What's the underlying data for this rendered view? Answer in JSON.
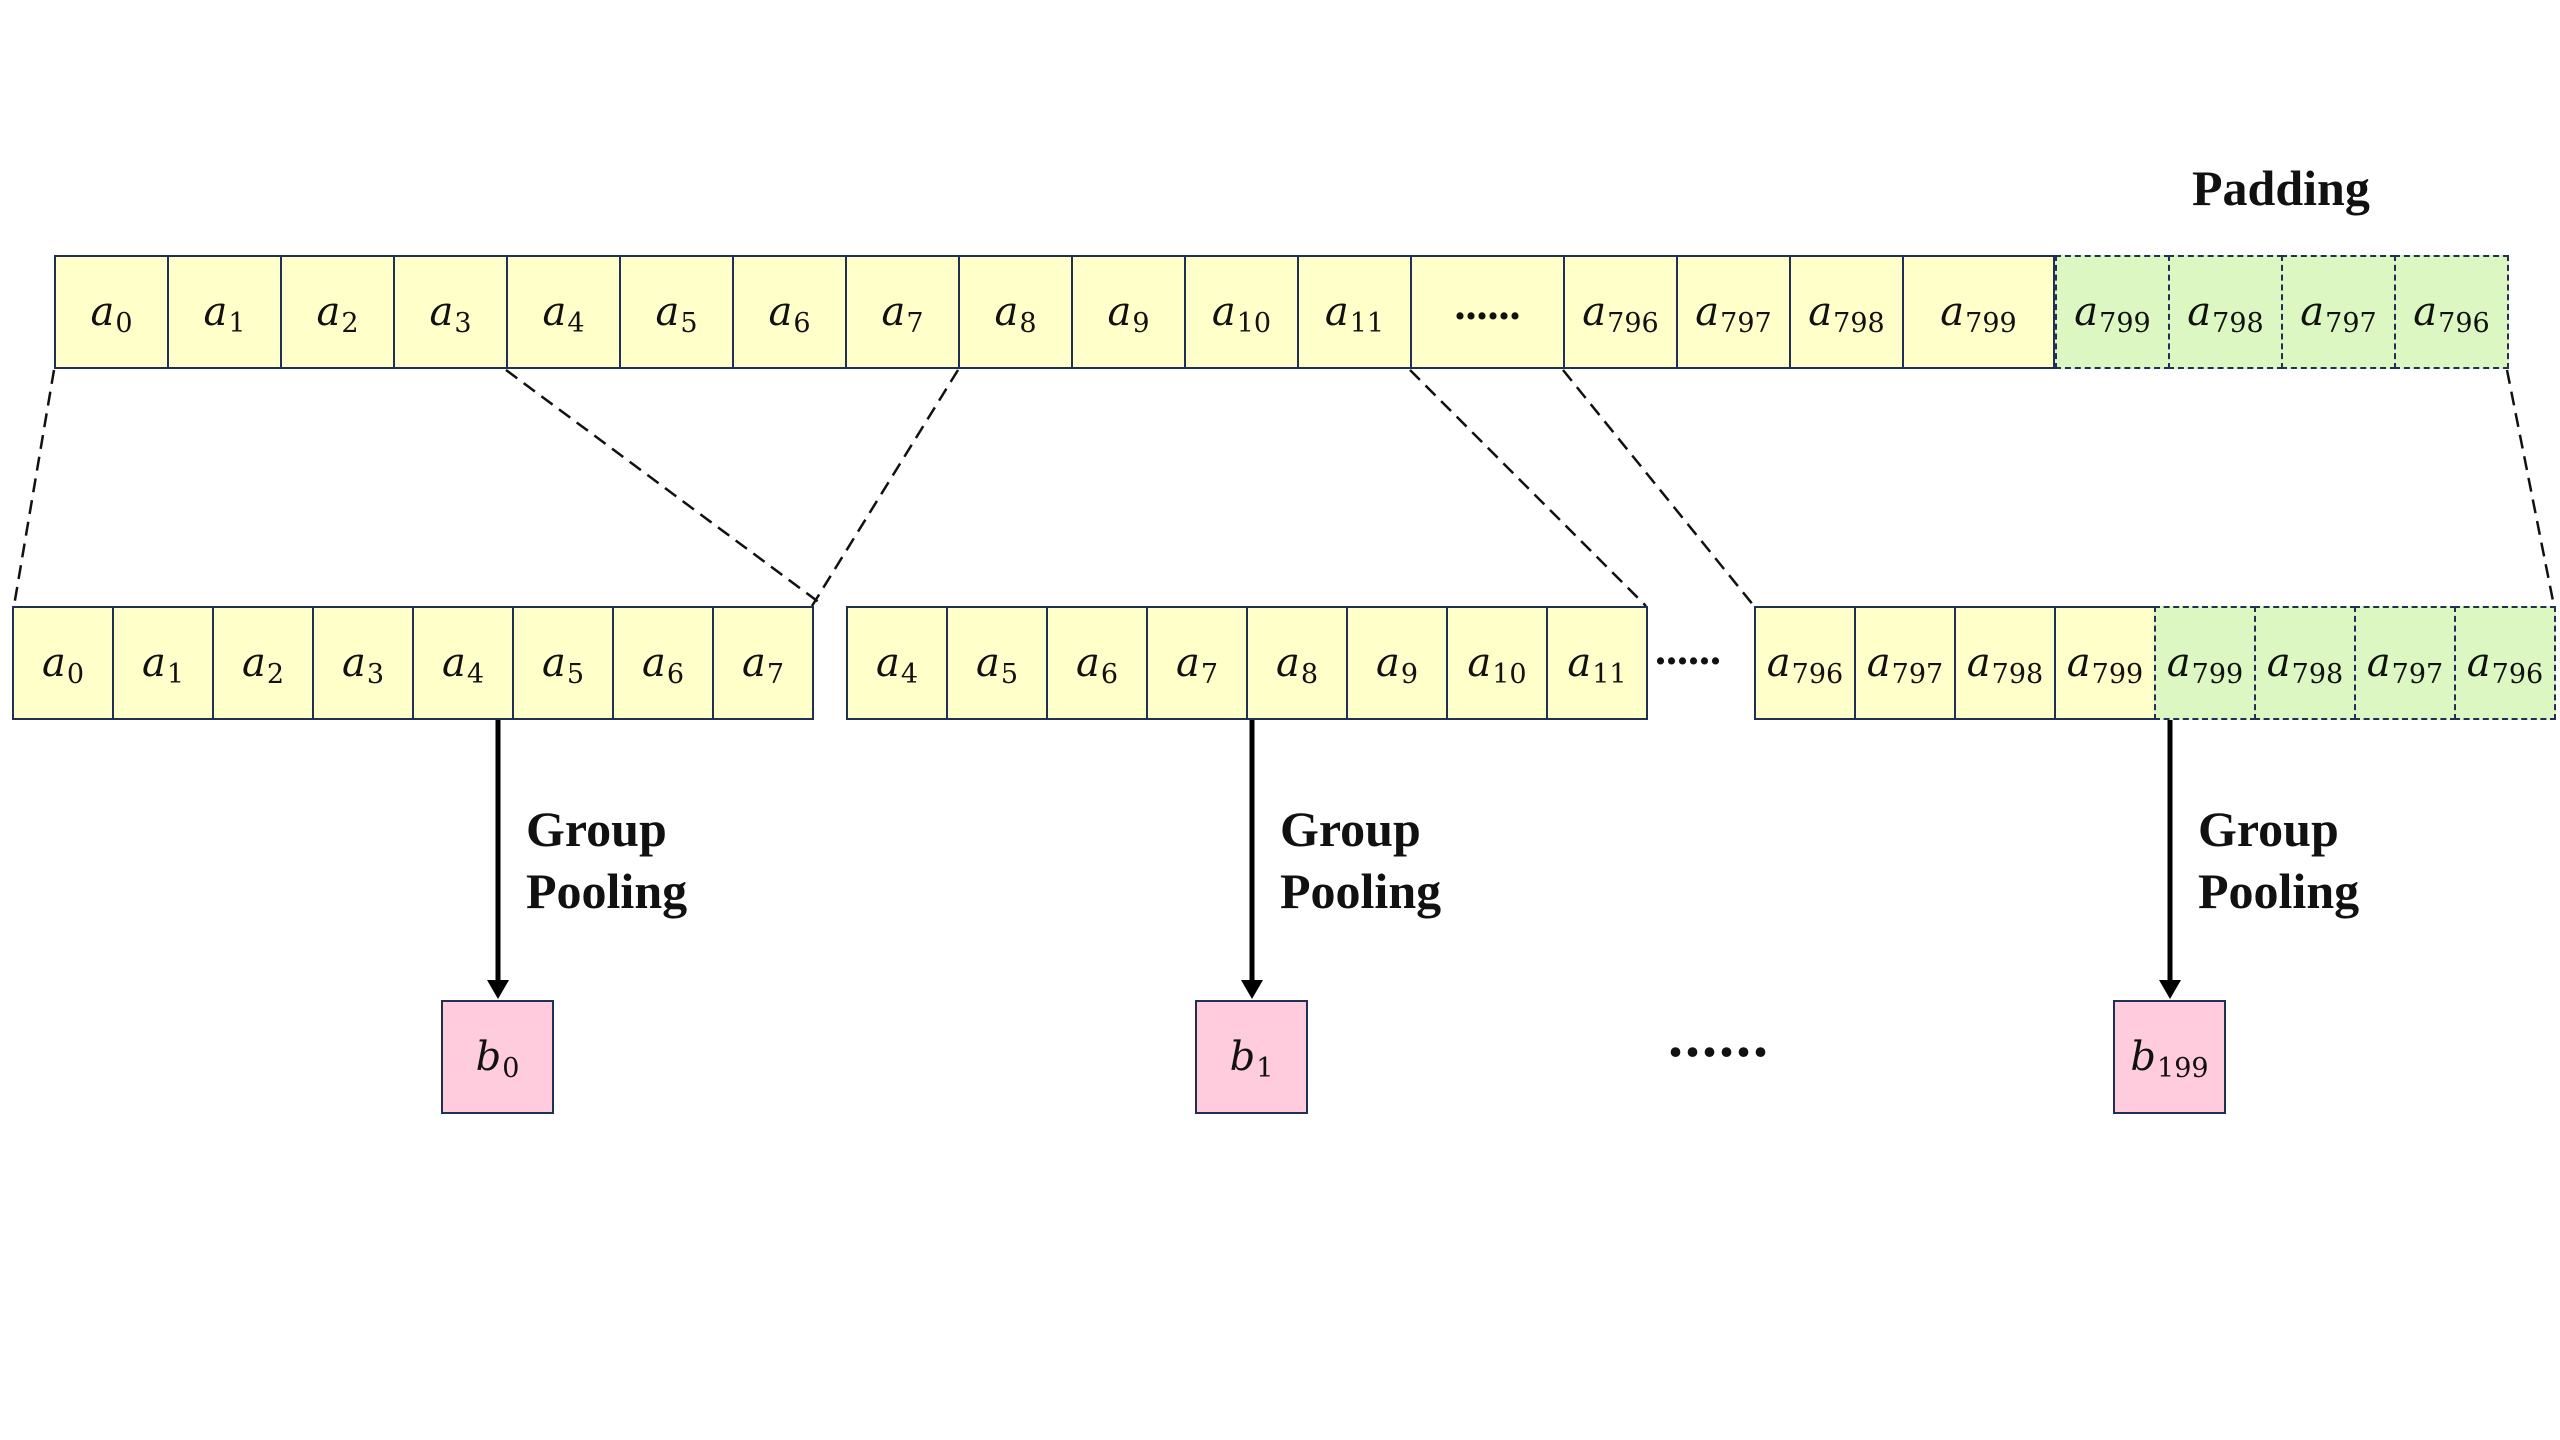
{
  "padding_label": "Padding",
  "row1": [
    {
      "base": "a",
      "sub": "0",
      "pad": false
    },
    {
      "base": "a",
      "sub": "1",
      "pad": false
    },
    {
      "base": "a",
      "sub": "2",
      "pad": false
    },
    {
      "base": "a",
      "sub": "3",
      "pad": false
    },
    {
      "base": "a",
      "sub": "4",
      "pad": false
    },
    {
      "base": "a",
      "sub": "5",
      "pad": false
    },
    {
      "base": "a",
      "sub": "6",
      "pad": false
    },
    {
      "base": "a",
      "sub": "7",
      "pad": false
    },
    {
      "base": "a",
      "sub": "8",
      "pad": false
    },
    {
      "base": "a",
      "sub": "9",
      "pad": false
    },
    {
      "base": "a",
      "sub": "10",
      "pad": false
    },
    {
      "base": "a",
      "sub": "11",
      "pad": false
    },
    {
      "text": "......",
      "pad": false
    },
    {
      "base": "a",
      "sub": "796",
      "pad": false
    },
    {
      "base": "a",
      "sub": "797",
      "pad": false
    },
    {
      "base": "a",
      "sub": "798",
      "pad": false
    },
    {
      "base": "a",
      "sub": "799",
      "pad": false
    },
    {
      "base": "a",
      "sub": "799",
      "pad": true
    },
    {
      "base": "a",
      "sub": "798",
      "pad": true
    },
    {
      "base": "a",
      "sub": "797",
      "pad": true
    },
    {
      "base": "a",
      "sub": "796",
      "pad": true
    }
  ],
  "groups": [
    {
      "cells": [
        {
          "base": "a",
          "sub": "0",
          "pad": false
        },
        {
          "base": "a",
          "sub": "1",
          "pad": false
        },
        {
          "base": "a",
          "sub": "2",
          "pad": false
        },
        {
          "base": "a",
          "sub": "3",
          "pad": false
        },
        {
          "base": "a",
          "sub": "4",
          "pad": false
        },
        {
          "base": "a",
          "sub": "5",
          "pad": false
        },
        {
          "base": "a",
          "sub": "6",
          "pad": false
        },
        {
          "base": "a",
          "sub": "7",
          "pad": false
        }
      ],
      "arrow_label": [
        "Group",
        "Pooling"
      ],
      "output": {
        "base": "b",
        "sub": "0"
      }
    },
    {
      "cells": [
        {
          "base": "a",
          "sub": "4",
          "pad": false
        },
        {
          "base": "a",
          "sub": "5",
          "pad": false
        },
        {
          "base": "a",
          "sub": "6",
          "pad": false
        },
        {
          "base": "a",
          "sub": "7",
          "pad": false
        },
        {
          "base": "a",
          "sub": "8",
          "pad": false
        },
        {
          "base": "a",
          "sub": "9",
          "pad": false
        },
        {
          "base": "a",
          "sub": "10",
          "pad": false
        },
        {
          "base": "a",
          "sub": "11",
          "pad": false
        }
      ],
      "arrow_label": [
        "Group",
        "Pooling"
      ],
      "output": {
        "base": "b",
        "sub": "1"
      }
    },
    {
      "cells": [
        {
          "base": "a",
          "sub": "796",
          "pad": false
        },
        {
          "base": "a",
          "sub": "797",
          "pad": false
        },
        {
          "base": "a",
          "sub": "798",
          "pad": false
        },
        {
          "base": "a",
          "sub": "799",
          "pad": false
        },
        {
          "base": "a",
          "sub": "799",
          "pad": true
        },
        {
          "base": "a",
          "sub": "798",
          "pad": true
        },
        {
          "base": "a",
          "sub": "797",
          "pad": true
        },
        {
          "base": "a",
          "sub": "796",
          "pad": true
        }
      ],
      "arrow_label": [
        "Group",
        "Pooling"
      ],
      "output": {
        "base": "b",
        "sub": "199"
      }
    }
  ],
  "row2_ellipsis": "......",
  "output_ellipsis": "......",
  "colors": {
    "cell_fill": "#FFFFC9",
    "padding_fill": "#DDF7C2",
    "output_fill": "#FFCCDD",
    "border": "#1f3054"
  }
}
